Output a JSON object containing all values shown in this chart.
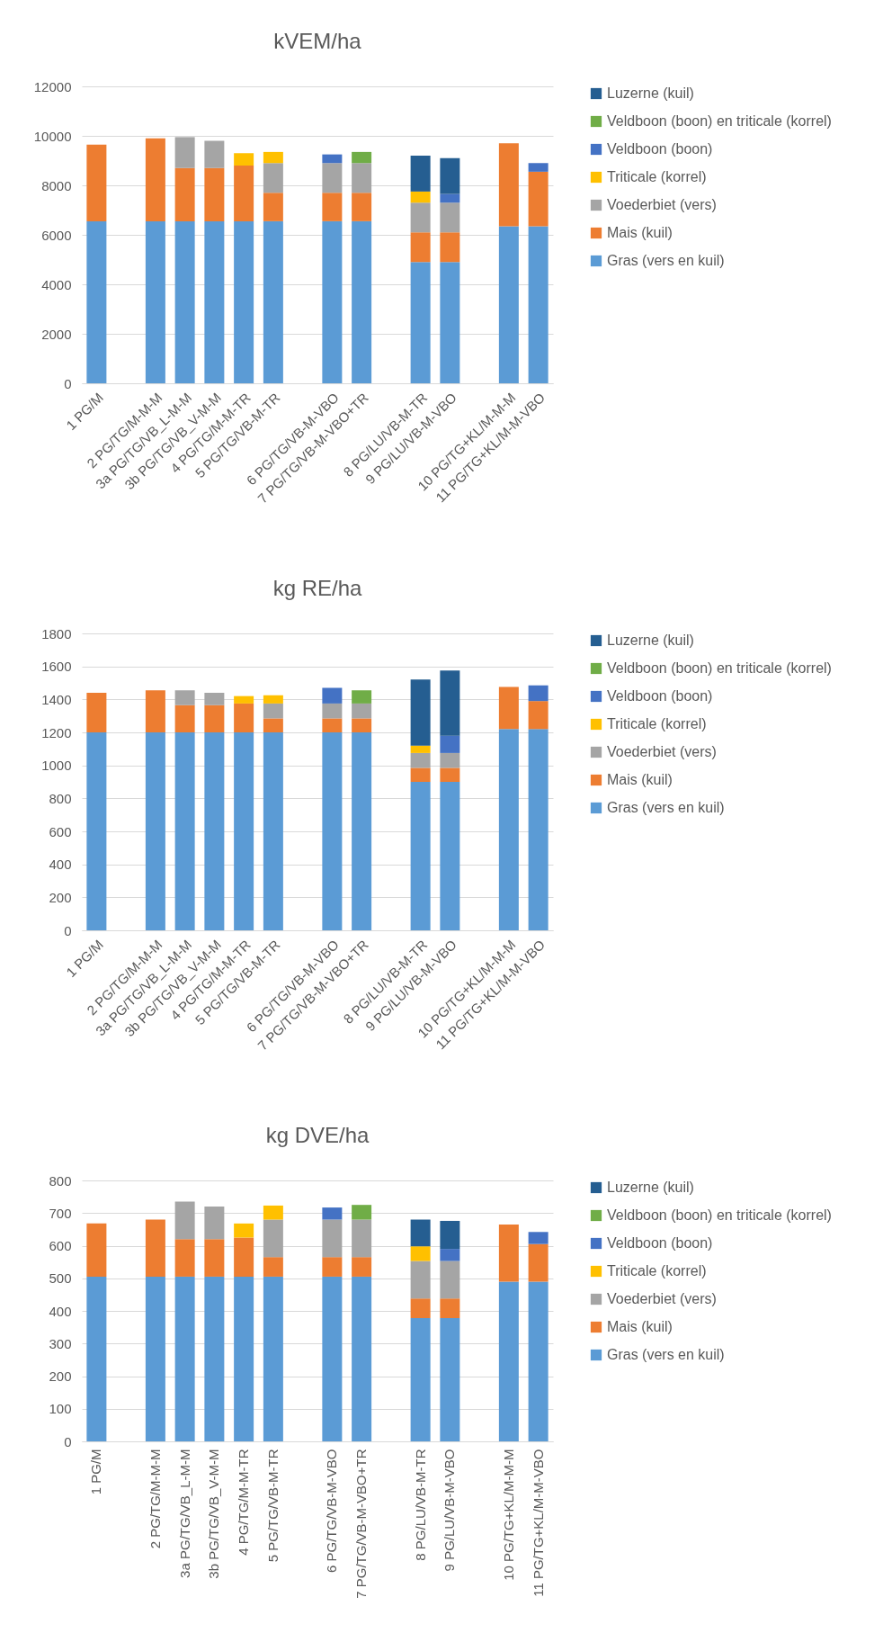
{
  "chart_data": [
    {
      "type": "bar",
      "title": "kVEM/ha",
      "stacked": true,
      "legend": "right",
      "grid": "y",
      "categories": [
        "1 PG/M",
        null,
        "2 PG/TG/M-M-M",
        "3a PG/TG/VB_L-M-M",
        "3b PG/TG/VB_V-M-M",
        "4 PG/TG/M-M-TR",
        "5 PG/TG/VB-M-TR",
        null,
        "6 PG/TG/VB-M-VBO",
        "7 PG/TG/VB-M-VBO+TR",
        null,
        "8 PG/LU/VB-M-TR",
        "9 PG/LU/VB-M-VBO",
        null,
        "10 PG/TG+KL/M-M-M",
        "11 PG/TG+KL/M-M-VBO"
      ],
      "ylim": [
        0,
        12000
      ],
      "yticks": [
        0,
        2000,
        4000,
        6000,
        8000,
        10000,
        12000
      ],
      "series": [
        {
          "name": "Gras (vers en kuil)",
          "color": "#5b9bd5",
          "values": [
            6550,
            null,
            6550,
            6550,
            6550,
            6550,
            6550,
            null,
            6550,
            6550,
            null,
            4900,
            4900,
            null,
            6350,
            6350
          ]
        },
        {
          "name": "Mais (kuil)",
          "color": "#ed7d31",
          "values": [
            3100,
            null,
            3350,
            2150,
            2150,
            2250,
            1150,
            null,
            1150,
            1150,
            null,
            1200,
            1200,
            null,
            3350,
            2200
          ]
        },
        {
          "name": "Voederbiet (vers)",
          "color": "#a5a5a5",
          "values": [
            null,
            null,
            null,
            1250,
            1100,
            null,
            1200,
            null,
            1200,
            1200,
            null,
            1200,
            1200,
            null,
            null,
            null
          ]
        },
        {
          "name": "Triticale (korrel)",
          "color": "#ffc000",
          "values": [
            null,
            null,
            null,
            null,
            null,
            500,
            450,
            null,
            null,
            null,
            null,
            450,
            null,
            null,
            null,
            null
          ]
        },
        {
          "name": "Veldboon (boon)",
          "color": "#4472c4",
          "values": [
            null,
            null,
            null,
            null,
            null,
            null,
            null,
            null,
            350,
            null,
            null,
            null,
            350,
            null,
            null,
            350
          ]
        },
        {
          "name": "Veldboon (boon) en triticale (korrel)",
          "color": "#70ad47",
          "values": [
            null,
            null,
            null,
            null,
            null,
            null,
            null,
            null,
            null,
            450,
            null,
            null,
            null,
            null,
            null,
            null
          ]
        },
        {
          "name": "Luzerne (kuil)",
          "color": "#255e91",
          "values": [
            null,
            null,
            null,
            null,
            null,
            null,
            null,
            null,
            null,
            null,
            null,
            1450,
            1450,
            null,
            null,
            null
          ]
        }
      ]
    },
    {
      "type": "bar",
      "title": "kg RE/ha",
      "stacked": true,
      "legend": "right",
      "grid": "y",
      "categories": [
        "1 PG/M",
        null,
        "2 PG/TG/M-M-M",
        "3a PG/TG/VB_L-M-M",
        "3b PG/TG/VB_V-M-M",
        "4 PG/TG/M-M-TR",
        "5 PG/TG/VB-M-TR",
        null,
        "6 PG/TG/VB-M-VBO",
        "7 PG/TG/VB-M-VBO+TR",
        null,
        "8 PG/LU/VB-M-TR",
        "9 PG/LU/VB-M-VBO",
        null,
        "10 PG/TG+KL/M-M-M",
        "11 PG/TG+KL/M-M-VBO"
      ],
      "ylim": [
        0,
        1800
      ],
      "yticks": [
        0,
        200,
        400,
        600,
        800,
        1000,
        1200,
        1400,
        1600,
        1800
      ],
      "series": [
        {
          "name": "Gras (vers en kuil)",
          "color": "#5b9bd5",
          "values": [
            1200,
            null,
            1200,
            1200,
            1200,
            1200,
            1200,
            null,
            1200,
            1200,
            null,
            900,
            900,
            null,
            1220,
            1220
          ]
        },
        {
          "name": "Mais (kuil)",
          "color": "#ed7d31",
          "values": [
            240,
            null,
            255,
            165,
            165,
            175,
            85,
            null,
            85,
            85,
            null,
            85,
            85,
            null,
            255,
            170
          ]
        },
        {
          "name": "Voederbiet (vers)",
          "color": "#a5a5a5",
          "values": [
            null,
            null,
            null,
            90,
            75,
            null,
            90,
            null,
            90,
            90,
            null,
            90,
            90,
            null,
            null,
            null
          ]
        },
        {
          "name": "Triticale (korrel)",
          "color": "#ffc000",
          "values": [
            null,
            null,
            null,
            null,
            null,
            45,
            50,
            null,
            null,
            null,
            null,
            45,
            null,
            null,
            null,
            null
          ]
        },
        {
          "name": "Veldboon (boon)",
          "color": "#4472c4",
          "values": [
            null,
            null,
            null,
            null,
            null,
            null,
            null,
            null,
            95,
            null,
            null,
            null,
            105,
            null,
            null,
            95
          ]
        },
        {
          "name": "Veldboon (boon) en triticale (korrel)",
          "color": "#70ad47",
          "values": [
            null,
            null,
            null,
            null,
            null,
            null,
            null,
            null,
            null,
            80,
            null,
            null,
            null,
            null,
            null,
            null
          ]
        },
        {
          "name": "Luzerne (kuil)",
          "color": "#255e91",
          "values": [
            null,
            null,
            null,
            null,
            null,
            null,
            null,
            null,
            null,
            null,
            null,
            400,
            395,
            null,
            null,
            null
          ]
        }
      ]
    },
    {
      "type": "bar",
      "title": "kg DVE/ha",
      "stacked": true,
      "legend": "right",
      "grid": "y",
      "categories": [
        "1 PG/M",
        null,
        "2 PG/TG/M-M-M",
        "3a PG/TG/VB_L-M-M",
        "3b PG/TG/VB_V-M-M",
        "4 PG/TG/M-M-TR",
        "5 PG/TG/VB-M-TR",
        null,
        "6 PG/TG/VB-M-VBO",
        "7 PG/TG/VB-M-VBO+TR",
        null,
        "8 PG/LU/VB-M-TR",
        "9 PG/LU/VB-M-VBO",
        null,
        "10 PG/TG+KL/M-M-M",
        "11 PG/TG+KL/M-M-VBO"
      ],
      "ylim": [
        0,
        800
      ],
      "yticks": [
        0,
        100,
        200,
        300,
        400,
        500,
        600,
        700,
        800
      ],
      "series": [
        {
          "name": "Gras (vers en kuil)",
          "color": "#5b9bd5",
          "values": [
            505,
            null,
            505,
            505,
            505,
            505,
            505,
            null,
            505,
            505,
            null,
            378,
            378,
            null,
            490,
            490
          ]
        },
        {
          "name": "Mais (kuil)",
          "color": "#ed7d31",
          "values": [
            163,
            null,
            175,
            115,
            115,
            120,
            60,
            null,
            60,
            60,
            null,
            60,
            60,
            null,
            175,
            115
          ]
        },
        {
          "name": "Voederbiet (vers)",
          "color": "#a5a5a5",
          "values": [
            null,
            null,
            null,
            115,
            100,
            null,
            115,
            null,
            115,
            115,
            null,
            115,
            115,
            null,
            null,
            null
          ]
        },
        {
          "name": "Triticale (korrel)",
          "color": "#ffc000",
          "values": [
            null,
            null,
            null,
            null,
            null,
            43,
            43,
            null,
            null,
            null,
            null,
            45,
            null,
            null,
            null,
            null
          ]
        },
        {
          "name": "Veldboon (boon)",
          "color": "#4472c4",
          "values": [
            null,
            null,
            null,
            null,
            null,
            null,
            null,
            null,
            37,
            null,
            null,
            null,
            37,
            null,
            null,
            37
          ]
        },
        {
          "name": "Veldboon (boon) en triticale (korrel)",
          "color": "#70ad47",
          "values": [
            null,
            null,
            null,
            null,
            null,
            null,
            null,
            null,
            null,
            45,
            null,
            null,
            null,
            null,
            null,
            null
          ]
        },
        {
          "name": "Luzerne (kuil)",
          "color": "#255e91",
          "values": [
            null,
            null,
            null,
            null,
            null,
            null,
            null,
            null,
            null,
            null,
            null,
            82,
            86,
            null,
            null,
            null
          ]
        }
      ]
    }
  ]
}
